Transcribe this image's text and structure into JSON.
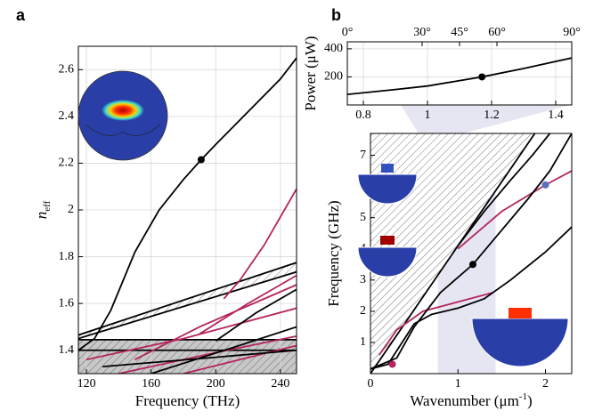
{
  "chart_data": [
    {
      "type": "line",
      "panel_label": "a",
      "xlabel": "Frequency (THz)",
      "ylabel": "n",
      "ylabel_sub": "eff",
      "xlim": [
        115,
        250
      ],
      "ylim": [
        1.3,
        2.7
      ],
      "xticks": [
        120,
        160,
        200,
        240
      ],
      "yticks": [
        1.4,
        1.6,
        1.8,
        2,
        2.2,
        2.4,
        2.6
      ],
      "grid": true,
      "regions": [
        {
          "x": [
            115,
            250,
            250,
            115
          ],
          "y": [
            1.3,
            1.3,
            1.445,
            1.445
          ],
          "fill": "#c8c8c8",
          "hatch": true
        },
        {
          "x": [
            115,
            250,
            250,
            115
          ],
          "y": [
            1.45,
            1.735,
            1.775,
            1.465
          ],
          "fill": "#ffffff",
          "hatch": true
        }
      ],
      "series": [
        {
          "color": "#000000",
          "x": [
            115,
            250
          ],
          "y": [
            1.445,
            1.445
          ]
        },
        {
          "color": "#000000",
          "x": [
            115,
            250
          ],
          "y": [
            1.4,
            1.4
          ]
        },
        {
          "color": "#000000",
          "x": [
            115,
            250
          ],
          "y": [
            1.45,
            1.735
          ]
        },
        {
          "color": "#000000",
          "x": [
            115,
            250
          ],
          "y": [
            1.465,
            1.775
          ]
        },
        {
          "color": "#b5245e",
          "x": [
            120,
            180,
            250
          ],
          "y": [
            1.36,
            1.45,
            1.58
          ]
        },
        {
          "color": "#b5245e",
          "x": [
            140,
            200,
            250
          ],
          "y": [
            1.3,
            1.39,
            1.46
          ]
        },
        {
          "color": "#b5245e",
          "x": [
            180,
            250
          ],
          "y": [
            1.3,
            1.42
          ]
        },
        {
          "color": "#b5245e",
          "x": [
            190,
            220,
            250
          ],
          "y": [
            1.47,
            1.6,
            1.72
          ]
        },
        {
          "color": "#b5245e",
          "x": [
            150,
            190,
            230,
            250
          ],
          "y": [
            1.36,
            1.5,
            1.62,
            1.68
          ]
        },
        {
          "color": "#000000",
          "x": [
            160,
            210,
            250
          ],
          "y": [
            1.3,
            1.41,
            1.5
          ]
        },
        {
          "color": "#000000",
          "x": [
            200,
            225,
            250
          ],
          "y": [
            1.44,
            1.56,
            1.66
          ]
        },
        {
          "color": "#000000",
          "x": [
            130,
            200,
            250
          ],
          "y": [
            1.33,
            1.37,
            1.4
          ]
        },
        {
          "color": "#b5245e",
          "x": [
            205,
            215,
            230,
            240,
            250
          ],
          "y": [
            1.62,
            1.7,
            1.85,
            1.97,
            2.09
          ]
        },
        {
          "color": "#000000",
          "x": [
            115,
            125,
            135,
            150,
            165,
            180,
            191,
            200,
            220,
            240,
            250
          ],
          "y": [
            1.4,
            1.45,
            1.57,
            1.82,
            2.0,
            2.13,
            2.215,
            2.28,
            2.42,
            2.56,
            2.65
          ]
        }
      ],
      "points": [
        {
          "x": 191,
          "y": 2.215,
          "color": "#000000"
        }
      ]
    },
    {
      "type": "line",
      "panel_label": "b",
      "ylabel": "Power (μW)",
      "xlim": [
        0.75,
        1.45
      ],
      "ylim": [
        0,
        450
      ],
      "xticks": [
        0.8,
        1,
        1.2,
        1.4
      ],
      "yticks": [
        200,
        400
      ],
      "grid": true,
      "x2lim": [
        0,
        90
      ],
      "x2ticks": [
        {
          "value": 0,
          "label": "0°"
        },
        {
          "value": 30,
          "label": "30°"
        },
        {
          "value": 45,
          "label": "45°"
        },
        {
          "value": 60,
          "label": "60°"
        },
        {
          "value": 90,
          "label": "90°"
        }
      ],
      "regions": [],
      "series": [
        {
          "color": "#000000",
          "x": [
            0.75,
            0.9,
            1.0,
            1.17,
            1.3,
            1.45
          ],
          "y": [
            75,
            110,
            135,
            200,
            260,
            335
          ]
        }
      ],
      "points": [
        {
          "x": 1.17,
          "y": 200,
          "color": "#000000"
        }
      ]
    },
    {
      "type": "line",
      "xlabel": "Wavenumber (μm",
      "xlabel_sup": "-1",
      "xlabel_end": ")",
      "ylabel": "Frequency (GHz)",
      "xlim": [
        0,
        2.3
      ],
      "ylim": [
        0,
        7.7
      ],
      "xticks": [
        0,
        1,
        2
      ],
      "yticks": [
        1,
        2,
        3,
        4,
        5,
        6,
        7
      ],
      "grid": false,
      "regions": [
        {
          "x": [
            0.77,
            1.43,
            1.43,
            0.77
          ],
          "y": [
            0,
            0,
            7.7,
            7.7
          ],
          "fill": "#e6e6f2",
          "hatch": false
        },
        {
          "x": [
            0,
            1.878,
            0
          ],
          "y": [
            0,
            7.7,
            7.7
          ],
          "fill": "#ffffff",
          "hatch": true
        }
      ],
      "series": [
        {
          "color": "#000000",
          "x": [
            0,
            1.878
          ],
          "y": [
            0,
            7.7
          ]
        },
        {
          "color": "#b5245e",
          "x": [
            0.1,
            0.3,
            0.6,
            1.0,
            1.4
          ],
          "y": [
            0.6,
            1.4,
            2.0,
            2.3,
            2.6
          ]
        },
        {
          "color": "#b5245e",
          "x": [
            1.0,
            1.5,
            2.0,
            2.3
          ],
          "y": [
            4.0,
            5.2,
            6.05,
            6.5
          ]
        },
        {
          "color": "#000000",
          "x": [
            0,
            0.2,
            0.5,
            0.7,
            1.0,
            1.3,
            1.6,
            2.0,
            2.3
          ],
          "y": [
            0.15,
            0.3,
            1.6,
            1.9,
            2.1,
            2.4,
            3.0,
            3.9,
            4.7
          ]
        },
        {
          "color": "#000000",
          "x": [
            0,
            0.3,
            0.5,
            0.8,
            1.17,
            1.5,
            1.8,
            2.05,
            2.3
          ],
          "y": [
            0.15,
            0.5,
            1.5,
            2.6,
            3.5,
            4.6,
            5.6,
            6.5,
            7.7
          ]
        },
        {
          "color": "#000000",
          "x": [
            1.0,
            1.3,
            1.6,
            1.85,
            2.05
          ],
          "y": [
            4.1,
            5.2,
            6.2,
            7.0,
            7.7
          ]
        }
      ],
      "points": [
        {
          "x": 1.17,
          "y": 3.5,
          "color": "#000000"
        },
        {
          "x": 0.25,
          "y": 0.3,
          "color": "#b5245e"
        },
        {
          "x": 2.0,
          "y": 6.05,
          "color": "#5a6fc0"
        }
      ]
    }
  ]
}
